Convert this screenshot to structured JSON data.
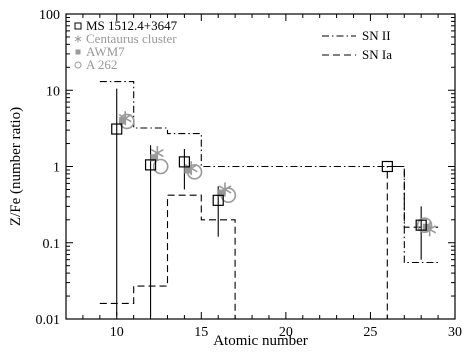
{
  "chart_data": {
    "type": "scatter",
    "xlabel": "Atomic number",
    "ylabel": "Z/Fe (number ratio)",
    "xlim": [
      7,
      30
    ],
    "ylim": [
      0.01,
      100
    ],
    "yscale": "log",
    "xticks": [
      10,
      15,
      20,
      25,
      30
    ],
    "xtick_labels": [
      "10",
      "15",
      "20",
      "25",
      "30"
    ],
    "yticks": [
      0.01,
      0.1,
      1,
      10,
      100
    ],
    "ytick_labels": [
      "0.01",
      "0.1",
      "1",
      "10",
      "100"
    ],
    "colors": {
      "primary": "#000000",
      "secondary": "#999999"
    },
    "series": [
      {
        "name": "MS 1512.4+3647",
        "marker": "open-square",
        "color": "#000000",
        "x": [
          10,
          12,
          14,
          16,
          26,
          28
        ],
        "y": [
          3.1,
          1.05,
          1.15,
          0.36,
          1.0,
          0.17
        ],
        "yerr_low": [
          0.011,
          0.011,
          0.5,
          0.12,
          null,
          0.06
        ],
        "yerr_high": [
          10.5,
          1.9,
          1.7,
          0.55,
          null,
          0.3
        ]
      },
      {
        "name": "Centaurus cluster",
        "marker": "star",
        "color": "#999999",
        "x": [
          10.5,
          12.4,
          14.4,
          16.4,
          28.5
        ],
        "y": [
          4.3,
          1.5,
          0.95,
          0.5,
          0.15
        ]
      },
      {
        "name": "AWM7",
        "marker": "filled-square",
        "color": "#999999",
        "x": [
          10.35,
          12.2,
          14.2,
          16.2,
          28.3
        ],
        "y": [
          4.0,
          1.3,
          0.9,
          0.45,
          0.16
        ]
      },
      {
        "name": "A 262",
        "marker": "open-circle",
        "color": "#999999",
        "x": [
          10.6,
          12.6,
          14.6,
          16.6,
          28.2
        ],
        "y": [
          3.9,
          1.0,
          0.85,
          0.42,
          0.17
        ]
      }
    ],
    "models": [
      {
        "name": "SN II",
        "style": "dash-dot",
        "x": [
          9,
          11,
          11,
          13,
          13,
          15,
          15,
          25,
          25,
          27,
          27,
          29
        ],
        "y": [
          13,
          13,
          3.2,
          3.2,
          2.7,
          2.7,
          1.0,
          1.0,
          1.0,
          1.0,
          0.055,
          0.055
        ]
      },
      {
        "name": "SN Ia",
        "style": "dashed",
        "x": [
          9,
          11,
          11,
          13,
          13,
          15,
          15,
          17,
          17,
          26,
          26,
          27,
          27,
          29
        ],
        "y": [
          0.016,
          0.016,
          0.027,
          0.027,
          0.42,
          0.42,
          0.2,
          0.2,
          0.01,
          0.01,
          1.0,
          1.0,
          0.16,
          0.16
        ]
      }
    ]
  }
}
